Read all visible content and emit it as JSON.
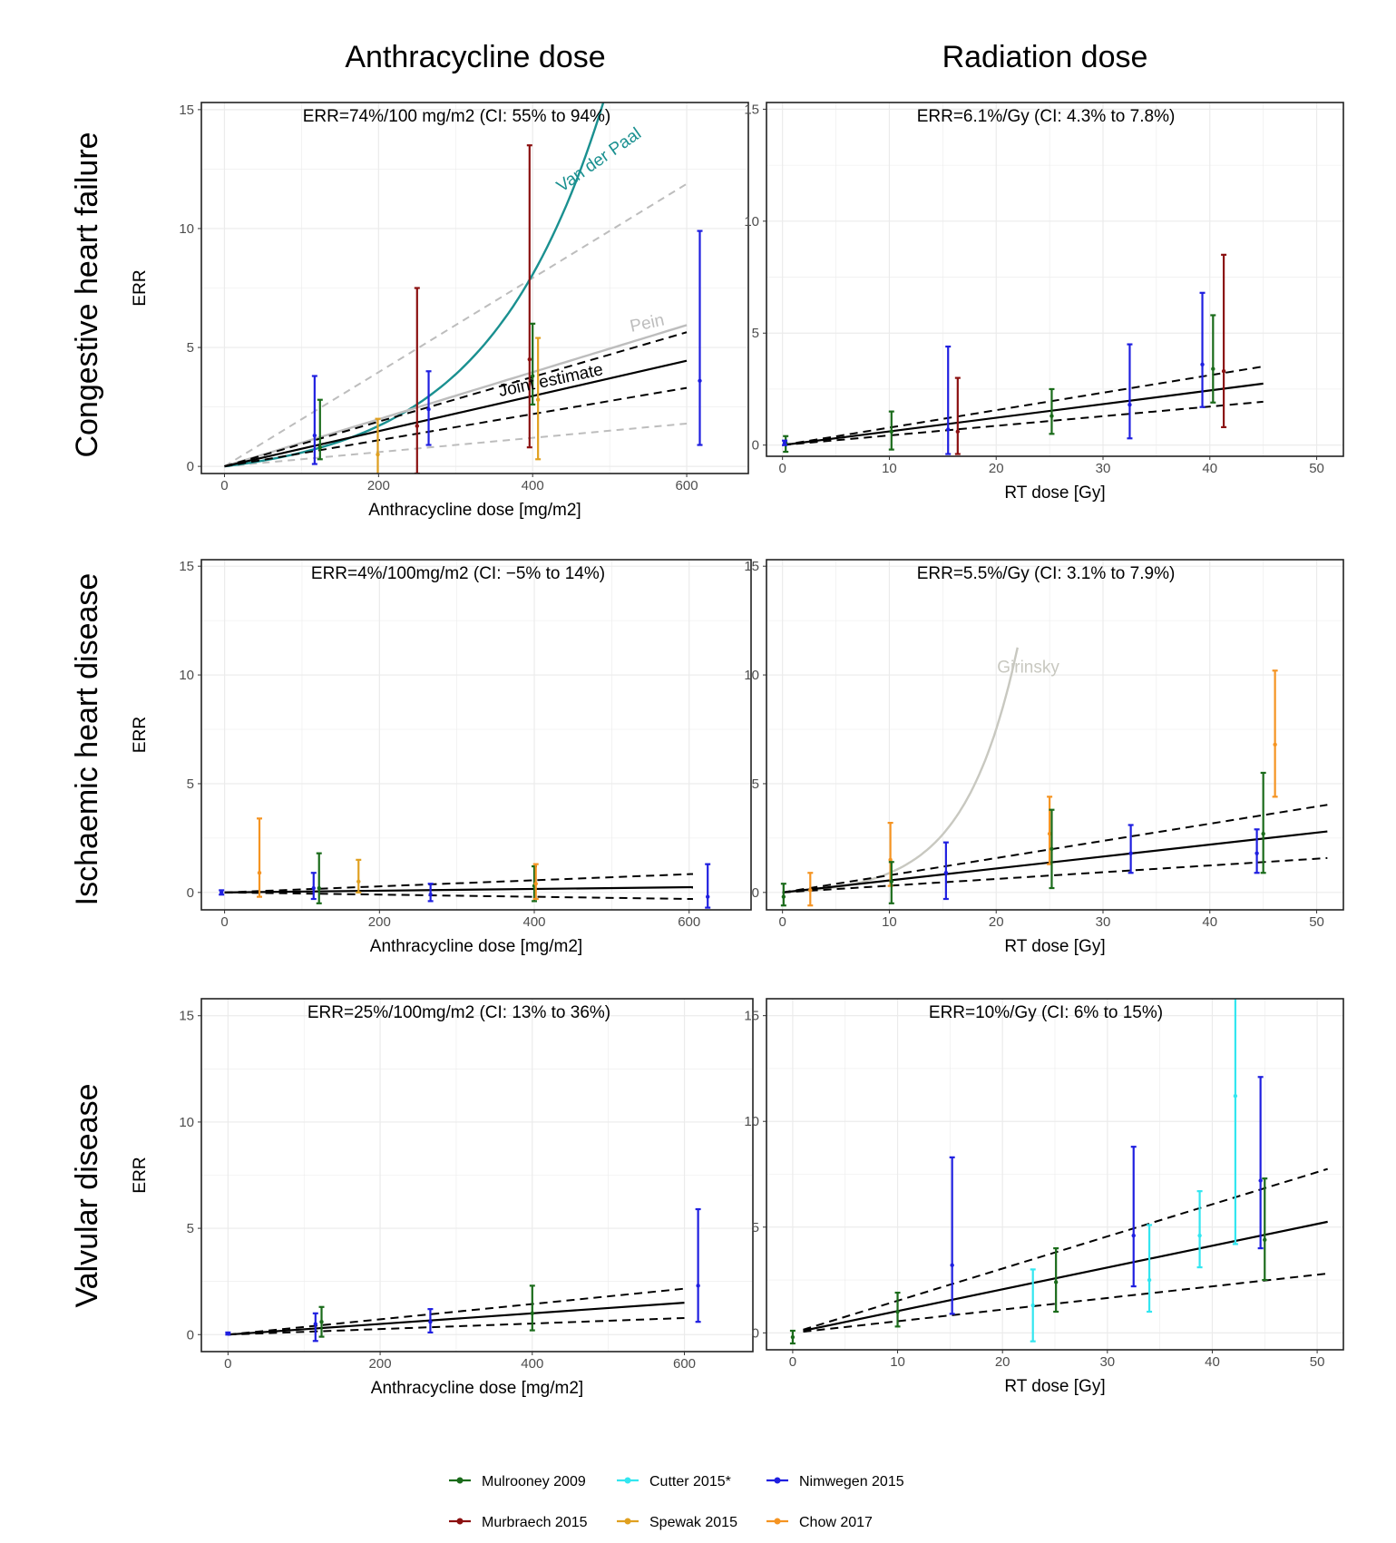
{
  "column_titles": [
    "Anthracycline dose",
    "Radiation dose"
  ],
  "row_titles": [
    "Congestive heart failure",
    "Ischaemic heart disease",
    "Valvular disease"
  ],
  "colors": {
    "Mulrooney 2009": "#1a6b1a",
    "Cutter 2015*": "#33e6f0",
    "Nimwegen 2015": "#1f1fe0",
    "Murbraech 2015": "#8b1010",
    "Spewak 2015": "#e0a020",
    "Chow 2017": "#f59422",
    "joint": "#000000",
    "ci_gray": "#bdbdbd",
    "vanderpaal": "#1a9090",
    "pein": "#bdbdbd",
    "girinsky": "#c8c8c0"
  },
  "legend": {
    "rows": [
      [
        "Mulrooney 2009",
        "Cutter 2015*",
        "Nimwegen 2015"
      ],
      [
        "Murbraech 2015",
        "Spewak 2015",
        "Chow 2017"
      ]
    ]
  },
  "chart_data": [
    {
      "id": "chf-anthra",
      "type": "scatter",
      "row": 0,
      "col": 0,
      "err_text": "ERR=74%/100 mg/m2 (CI: 55% to 94%)",
      "xlabel": "Anthracycline dose [mg/m2]",
      "ylabel": "ERR",
      "xlim": [
        -30,
        680
      ],
      "ylim": [
        -0.3,
        15.3
      ],
      "xticks": [
        0,
        200,
        400,
        600
      ],
      "yticks": [
        0,
        5,
        10,
        15
      ],
      "grid": true,
      "joint": {
        "slope": 0.0074,
        "ci": [
          0.0055,
          0.0094
        ],
        "xmax": 600
      },
      "extra_ci": [
        {
          "slope_low": 0.003,
          "slope_high": 0.0198,
          "xmax": 600,
          "color": "ci_gray"
        }
      ],
      "reference_curves": [
        {
          "name": "Van der Paal",
          "label": "Van der Paal",
          "color": "vanderpaal",
          "kind": "exp",
          "a": 0.62,
          "b": 0.0066,
          "xmax": 500,
          "label_at": [
            490,
            12.7
          ],
          "label_rotate": -35
        },
        {
          "name": "Pein",
          "label": "Pein",
          "color": "pein",
          "kind": "linear",
          "slope": 0.0099,
          "xmax": 600,
          "label_at": [
            550,
            5.8
          ],
          "label_rotate": -12
        }
      ],
      "joint_label": {
        "text": "Joint estimate",
        "at": [
          425,
          3.4
        ],
        "rotate": -12
      },
      "points": [
        {
          "study": "Nimwegen 2015",
          "x": 117,
          "y": 1.3,
          "lo": 0.1,
          "hi": 3.8
        },
        {
          "study": "Mulrooney 2009",
          "x": 124,
          "y": 0.8,
          "lo": 0.3,
          "hi": 2.8
        },
        {
          "study": "Spewak 2015",
          "x": 199,
          "y": 0.5,
          "lo": -0.5,
          "hi": 2.0
        },
        {
          "study": "Murbraech 2015",
          "x": 250,
          "y": 1.7,
          "lo": -0.3,
          "hi": 7.5
        },
        {
          "study": "Nimwegen 2015",
          "x": 265,
          "y": 2.4,
          "lo": 0.9,
          "hi": 4.0
        },
        {
          "study": "Murbraech 2015",
          "x": 396,
          "y": 4.5,
          "lo": 0.8,
          "hi": 13.5
        },
        {
          "study": "Mulrooney 2009",
          "x": 400,
          "y": 3.8,
          "lo": 2.6,
          "hi": 6.0
        },
        {
          "study": "Spewak 2015",
          "x": 407,
          "y": 2.8,
          "lo": 0.3,
          "hi": 5.4
        },
        {
          "study": "Nimwegen 2015",
          "x": 617,
          "y": 3.6,
          "lo": 0.9,
          "hi": 9.9
        }
      ]
    },
    {
      "id": "chf-rt",
      "type": "scatter",
      "row": 0,
      "col": 1,
      "err_text": "ERR=6.1%/Gy (CI: 4.3% to 7.8%)",
      "xlabel": "RT dose [Gy]",
      "ylabel": "",
      "xlim": [
        -1.5,
        52.5
      ],
      "ylim": [
        -0.5,
        15.3
      ],
      "xticks": [
        0,
        10,
        20,
        30,
        40,
        50
      ],
      "yticks": [
        0,
        5,
        10,
        15
      ],
      "grid": true,
      "joint": {
        "slope": 0.061,
        "ci": [
          0.043,
          0.078
        ],
        "xmax": 45
      },
      "points": [
        {
          "study": "Mulrooney 2009",
          "x": 0.3,
          "y": 0.1,
          "lo": -0.3,
          "hi": 0.4
        },
        {
          "study": "Nimwegen 2015",
          "x": 0.2,
          "y": 0.1,
          "lo": 0.0,
          "hi": 0.2
        },
        {
          "study": "Mulrooney 2009",
          "x": 10.2,
          "y": 0.6,
          "lo": -0.2,
          "hi": 1.5
        },
        {
          "study": "Nimwegen 2015",
          "x": 15.5,
          "y": 0.7,
          "lo": -0.4,
          "hi": 4.4
        },
        {
          "study": "Murbraech 2015",
          "x": 16.4,
          "y": 0.6,
          "lo": -0.4,
          "hi": 3.0
        },
        {
          "study": "Mulrooney 2009",
          "x": 25.2,
          "y": 1.3,
          "lo": 0.5,
          "hi": 2.5
        },
        {
          "study": "Nimwegen 2015",
          "x": 32.5,
          "y": 1.8,
          "lo": 0.3,
          "hi": 4.5
        },
        {
          "study": "Nimwegen 2015",
          "x": 39.3,
          "y": 3.6,
          "lo": 1.7,
          "hi": 6.8
        },
        {
          "study": "Mulrooney 2009",
          "x": 40.3,
          "y": 3.4,
          "lo": 1.9,
          "hi": 5.8
        },
        {
          "study": "Murbraech 2015",
          "x": 41.3,
          "y": 3.3,
          "lo": 0.8,
          "hi": 8.5
        }
      ]
    },
    {
      "id": "ihd-anthra",
      "type": "scatter",
      "row": 1,
      "col": 0,
      "err_text": "ERR=4%/100mg/m2 (CI: −5% to 14%)",
      "xlabel": "Anthracycline dose [mg/m2]",
      "ylabel": "ERR",
      "xlim": [
        -30,
        680
      ],
      "ylim": [
        -0.8,
        15.3
      ],
      "xticks": [
        0,
        200,
        400,
        600
      ],
      "yticks": [
        0,
        5,
        10,
        15
      ],
      "grid": true,
      "joint": {
        "slope": 0.0004,
        "ci": [
          -0.0005,
          0.0014
        ],
        "xmax": 605
      },
      "points": [
        {
          "study": "Nimwegen 2015",
          "x": -4,
          "y": 0.0,
          "lo": -0.1,
          "hi": 0.1
        },
        {
          "study": "Chow 2017",
          "x": 45,
          "y": 0.9,
          "lo": -0.2,
          "hi": 3.4
        },
        {
          "study": "Nimwegen 2015",
          "x": 115,
          "y": 0.2,
          "lo": -0.3,
          "hi": 0.9
        },
        {
          "study": "Mulrooney 2009",
          "x": 122,
          "y": 0.2,
          "lo": -0.5,
          "hi": 1.8
        },
        {
          "study": "Spewak 2015",
          "x": 173,
          "y": 0.5,
          "lo": 0.0,
          "hi": 1.5
        },
        {
          "study": "Nimwegen 2015",
          "x": 266,
          "y": -0.1,
          "lo": -0.4,
          "hi": 0.4
        },
        {
          "study": "Mulrooney 2009",
          "x": 400,
          "y": 0.3,
          "lo": -0.4,
          "hi": 1.2
        },
        {
          "study": "Chow 2017",
          "x": 402,
          "y": 0.4,
          "lo": -0.3,
          "hi": 1.3
        },
        {
          "study": "Nimwegen 2015",
          "x": 624,
          "y": -0.2,
          "lo": -0.7,
          "hi": 1.3
        }
      ]
    },
    {
      "id": "ihd-rt",
      "type": "scatter",
      "row": 1,
      "col": 1,
      "err_text": "ERR=5.5%/Gy (CI: 3.1% to 7.9%)",
      "xlabel": "RT dose [Gy]",
      "ylabel": "",
      "xlim": [
        -1.5,
        52.5
      ],
      "ylim": [
        -0.8,
        15.3
      ],
      "xticks": [
        0,
        10,
        20,
        30,
        40,
        50
      ],
      "yticks": [
        0,
        5,
        10,
        15
      ],
      "grid": true,
      "joint": {
        "slope": 0.055,
        "ci": [
          0.031,
          0.079
        ],
        "xmax": 51
      },
      "reference_curves": [
        {
          "name": "Girinsky",
          "label": "Girinsky",
          "color": "girinsky",
          "kind": "exp",
          "a": 0.14,
          "b": 0.2,
          "xmax": 22,
          "label_at": [
            23,
            10.1
          ],
          "label_rotate": 0
        }
      ],
      "points": [
        {
          "study": "Mulrooney 2009",
          "x": 0.1,
          "y": -0.2,
          "lo": -0.6,
          "hi": 0.4
        },
        {
          "study": "Chow 2017",
          "x": 2.6,
          "y": 0.1,
          "lo": -0.6,
          "hi": 0.9
        },
        {
          "study": "Chow 2017",
          "x": 10.1,
          "y": 1.5,
          "lo": 0.3,
          "hi": 3.2
        },
        {
          "study": "Mulrooney 2009",
          "x": 10.2,
          "y": 0.5,
          "lo": -0.5,
          "hi": 1.4
        },
        {
          "study": "Nimwegen 2015",
          "x": 15.3,
          "y": 0.9,
          "lo": -0.3,
          "hi": 2.3
        },
        {
          "study": "Chow 2017",
          "x": 25.0,
          "y": 2.7,
          "lo": 1.3,
          "hi": 4.4
        },
        {
          "study": "Mulrooney 2009",
          "x": 25.2,
          "y": 2.0,
          "lo": 0.2,
          "hi": 3.8
        },
        {
          "study": "Nimwegen 2015",
          "x": 32.6,
          "y": 1.8,
          "lo": 0.9,
          "hi": 3.1
        },
        {
          "study": "Nimwegen 2015",
          "x": 44.4,
          "y": 1.8,
          "lo": 0.9,
          "hi": 2.9
        },
        {
          "study": "Mulrooney 2009",
          "x": 45.0,
          "y": 2.7,
          "lo": 0.9,
          "hi": 5.5
        },
        {
          "study": "Chow 2017",
          "x": 46.1,
          "y": 6.8,
          "lo": 4.4,
          "hi": 10.2
        }
      ]
    },
    {
      "id": "vd-anthra",
      "type": "scatter",
      "row": 2,
      "col": 0,
      "err_text": "ERR=25%/100mg/m2 (CI: 13% to 36%)",
      "xlabel": "Anthracycline dose [mg/m2]",
      "ylabel": "ERR",
      "xlim": [
        -35,
        690
      ],
      "ylim": [
        -0.8,
        15.8
      ],
      "xticks": [
        0,
        200,
        400,
        600
      ],
      "yticks": [
        0,
        5,
        10,
        15
      ],
      "grid": true,
      "joint": {
        "slope": 0.0025,
        "ci": [
          0.0013,
          0.0036
        ],
        "xmax": 600
      },
      "points": [
        {
          "study": "Nimwegen 2015",
          "x": 0,
          "y": 0.05,
          "lo": 0.0,
          "hi": 0.1
        },
        {
          "study": "Nimwegen 2015",
          "x": 115,
          "y": 0.5,
          "lo": -0.3,
          "hi": 1.0
        },
        {
          "study": "Mulrooney 2009",
          "x": 123,
          "y": 0.6,
          "lo": -0.1,
          "hi": 1.3
        },
        {
          "study": "Nimwegen 2015",
          "x": 266,
          "y": 0.6,
          "lo": 0.1,
          "hi": 1.2
        },
        {
          "study": "Mulrooney 2009",
          "x": 400,
          "y": 1.0,
          "lo": 0.2,
          "hi": 2.3
        },
        {
          "study": "Nimwegen 2015",
          "x": 618,
          "y": 2.3,
          "lo": 0.6,
          "hi": 5.9
        }
      ]
    },
    {
      "id": "vd-rt",
      "type": "scatter",
      "row": 2,
      "col": 1,
      "err_text": "ERR=10%/Gy (CI: 6% to 15%)",
      "xlabel": "RT dose [Gy]",
      "ylabel": "",
      "xlim": [
        -2.5,
        52.5
      ],
      "ylim": [
        -0.8,
        15.8
      ],
      "xticks": [
        0,
        10,
        20,
        30,
        40,
        50
      ],
      "yticks": [
        0,
        5,
        10,
        15
      ],
      "grid": true,
      "joint": {
        "slope": 0.103,
        "ci": [
          0.055,
          0.152
        ],
        "xmax": 51,
        "xmin": 1
      },
      "points": [
        {
          "study": "Mulrooney 2009",
          "x": 0.0,
          "y": -0.2,
          "lo": -0.5,
          "hi": 0.1
        },
        {
          "study": "Mulrooney 2009",
          "x": 10.0,
          "y": 1.0,
          "lo": 0.3,
          "hi": 1.9
        },
        {
          "study": "Nimwegen 2015",
          "x": 15.2,
          "y": 3.2,
          "lo": 0.9,
          "hi": 8.3
        },
        {
          "study": "Cutter 2015*",
          "x": 22.9,
          "y": 1.3,
          "lo": -0.4,
          "hi": 3.0
        },
        {
          "study": "Mulrooney 2009",
          "x": 25.1,
          "y": 2.4,
          "lo": 1.0,
          "hi": 4.0
        },
        {
          "study": "Nimwegen 2015",
          "x": 32.5,
          "y": 4.6,
          "lo": 2.2,
          "hi": 8.8
        },
        {
          "study": "Cutter 2015*",
          "x": 34.0,
          "y": 2.5,
          "lo": 1.0,
          "hi": 5.1
        },
        {
          "study": "Cutter 2015*",
          "x": 38.8,
          "y": 4.6,
          "lo": 3.1,
          "hi": 6.7
        },
        {
          "study": "Cutter 2015*",
          "x": 42.2,
          "y": 11.2,
          "lo": 4.2,
          "hi": 16.0
        },
        {
          "study": "Nimwegen 2015",
          "x": 44.6,
          "y": 7.2,
          "lo": 4.0,
          "hi": 12.1
        },
        {
          "study": "Mulrooney 2009",
          "x": 45.0,
          "y": 4.4,
          "lo": 2.5,
          "hi": 7.3
        }
      ]
    }
  ]
}
